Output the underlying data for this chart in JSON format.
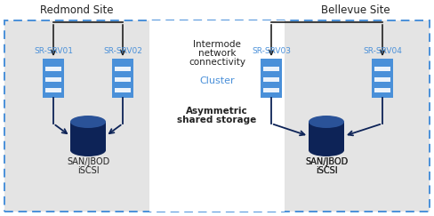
{
  "fig_width": 4.88,
  "fig_height": 2.43,
  "dpi": 100,
  "bg_color": "#ffffff",
  "site_bg_color": "#e4e4e4",
  "border_color": "#4a90d9",
  "server_color": "#4a90d9",
  "storage_dark": "#0d2357",
  "storage_mid": "#1a3a7a",
  "storage_top": "#2a5298",
  "arrow_color": "#0d2357",
  "line_color": "#0d2357",
  "top_line_color": "#222222",
  "text_dark": "#222222",
  "text_blue": "#4a90d9",
  "redmond_title": "Redmond Site",
  "bellevue_title": "Bellevue Site",
  "srv01": "SR-SRV01",
  "srv02": "SR-SRV02",
  "srv03": "SR-SRV03",
  "srv04": "SR-SRV04",
  "center_line1": "Intermode",
  "center_line2": "network",
  "center_line3": "connectivity",
  "cluster_text": "Cluster",
  "asym_line1": "Asymmetric",
  "asym_line2": "shared storage",
  "storage_label1": "SAN/JBOD",
  "storage_label2": "iSCSI"
}
